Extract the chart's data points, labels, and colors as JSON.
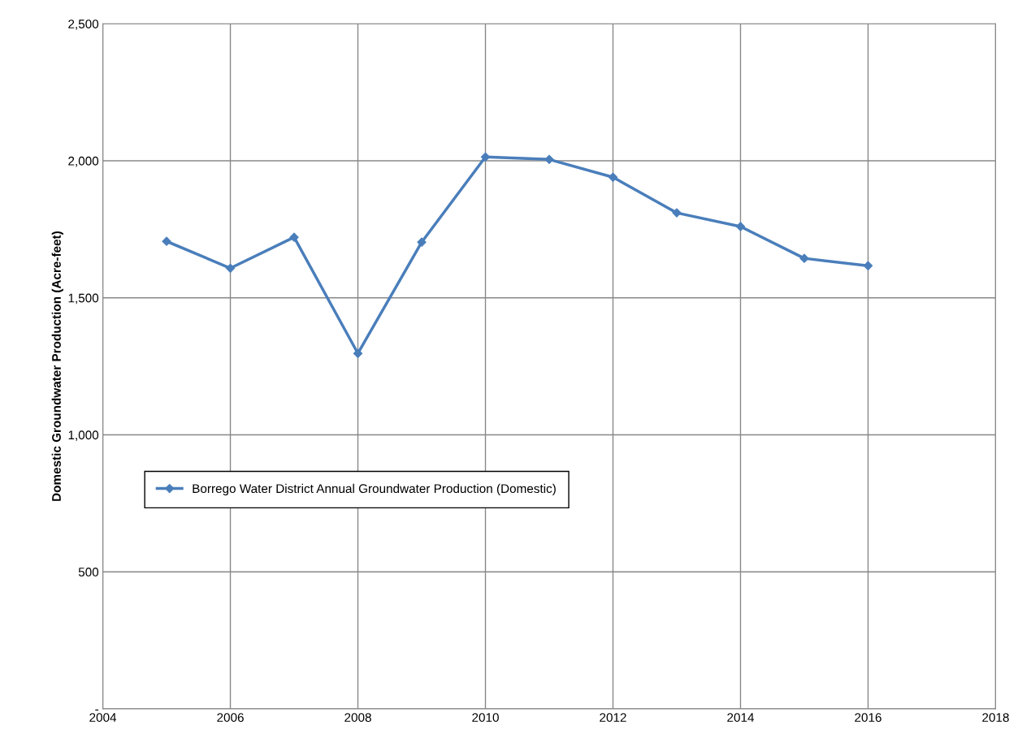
{
  "chart_data": {
    "type": "line",
    "ylabel": "Domestic Groundwater Production (Acre-feet)",
    "x": [
      2005,
      2006,
      2007,
      2008,
      2009,
      2010,
      2011,
      2012,
      2013,
      2014,
      2015,
      2016
    ],
    "series": [
      {
        "name": "Borrego Water District Annual Groundwater Production (Domestic)",
        "color": "#4a7ebb",
        "values": [
          1706,
          1608,
          1721,
          1297,
          1703,
          2014,
          2005,
          1940,
          1810,
          1760,
          1644,
          1617
        ]
      }
    ],
    "xlim": [
      2004,
      2018
    ],
    "xticks": [
      2004,
      2006,
      2008,
      2010,
      2012,
      2014,
      2016,
      2018
    ],
    "ylim": [
      0,
      2500
    ],
    "yticks": [
      {
        "value": 0,
        "label": "-"
      },
      500,
      {
        "value": 1000,
        "label": "1,000"
      },
      {
        "value": 1500,
        "label": "1,500"
      },
      {
        "value": 2000,
        "label": "2,000"
      },
      {
        "value": 2500,
        "label": "2,500"
      }
    ],
    "grid": true,
    "legend": "left",
    "marker": "diamond",
    "line_style": "solid"
  }
}
